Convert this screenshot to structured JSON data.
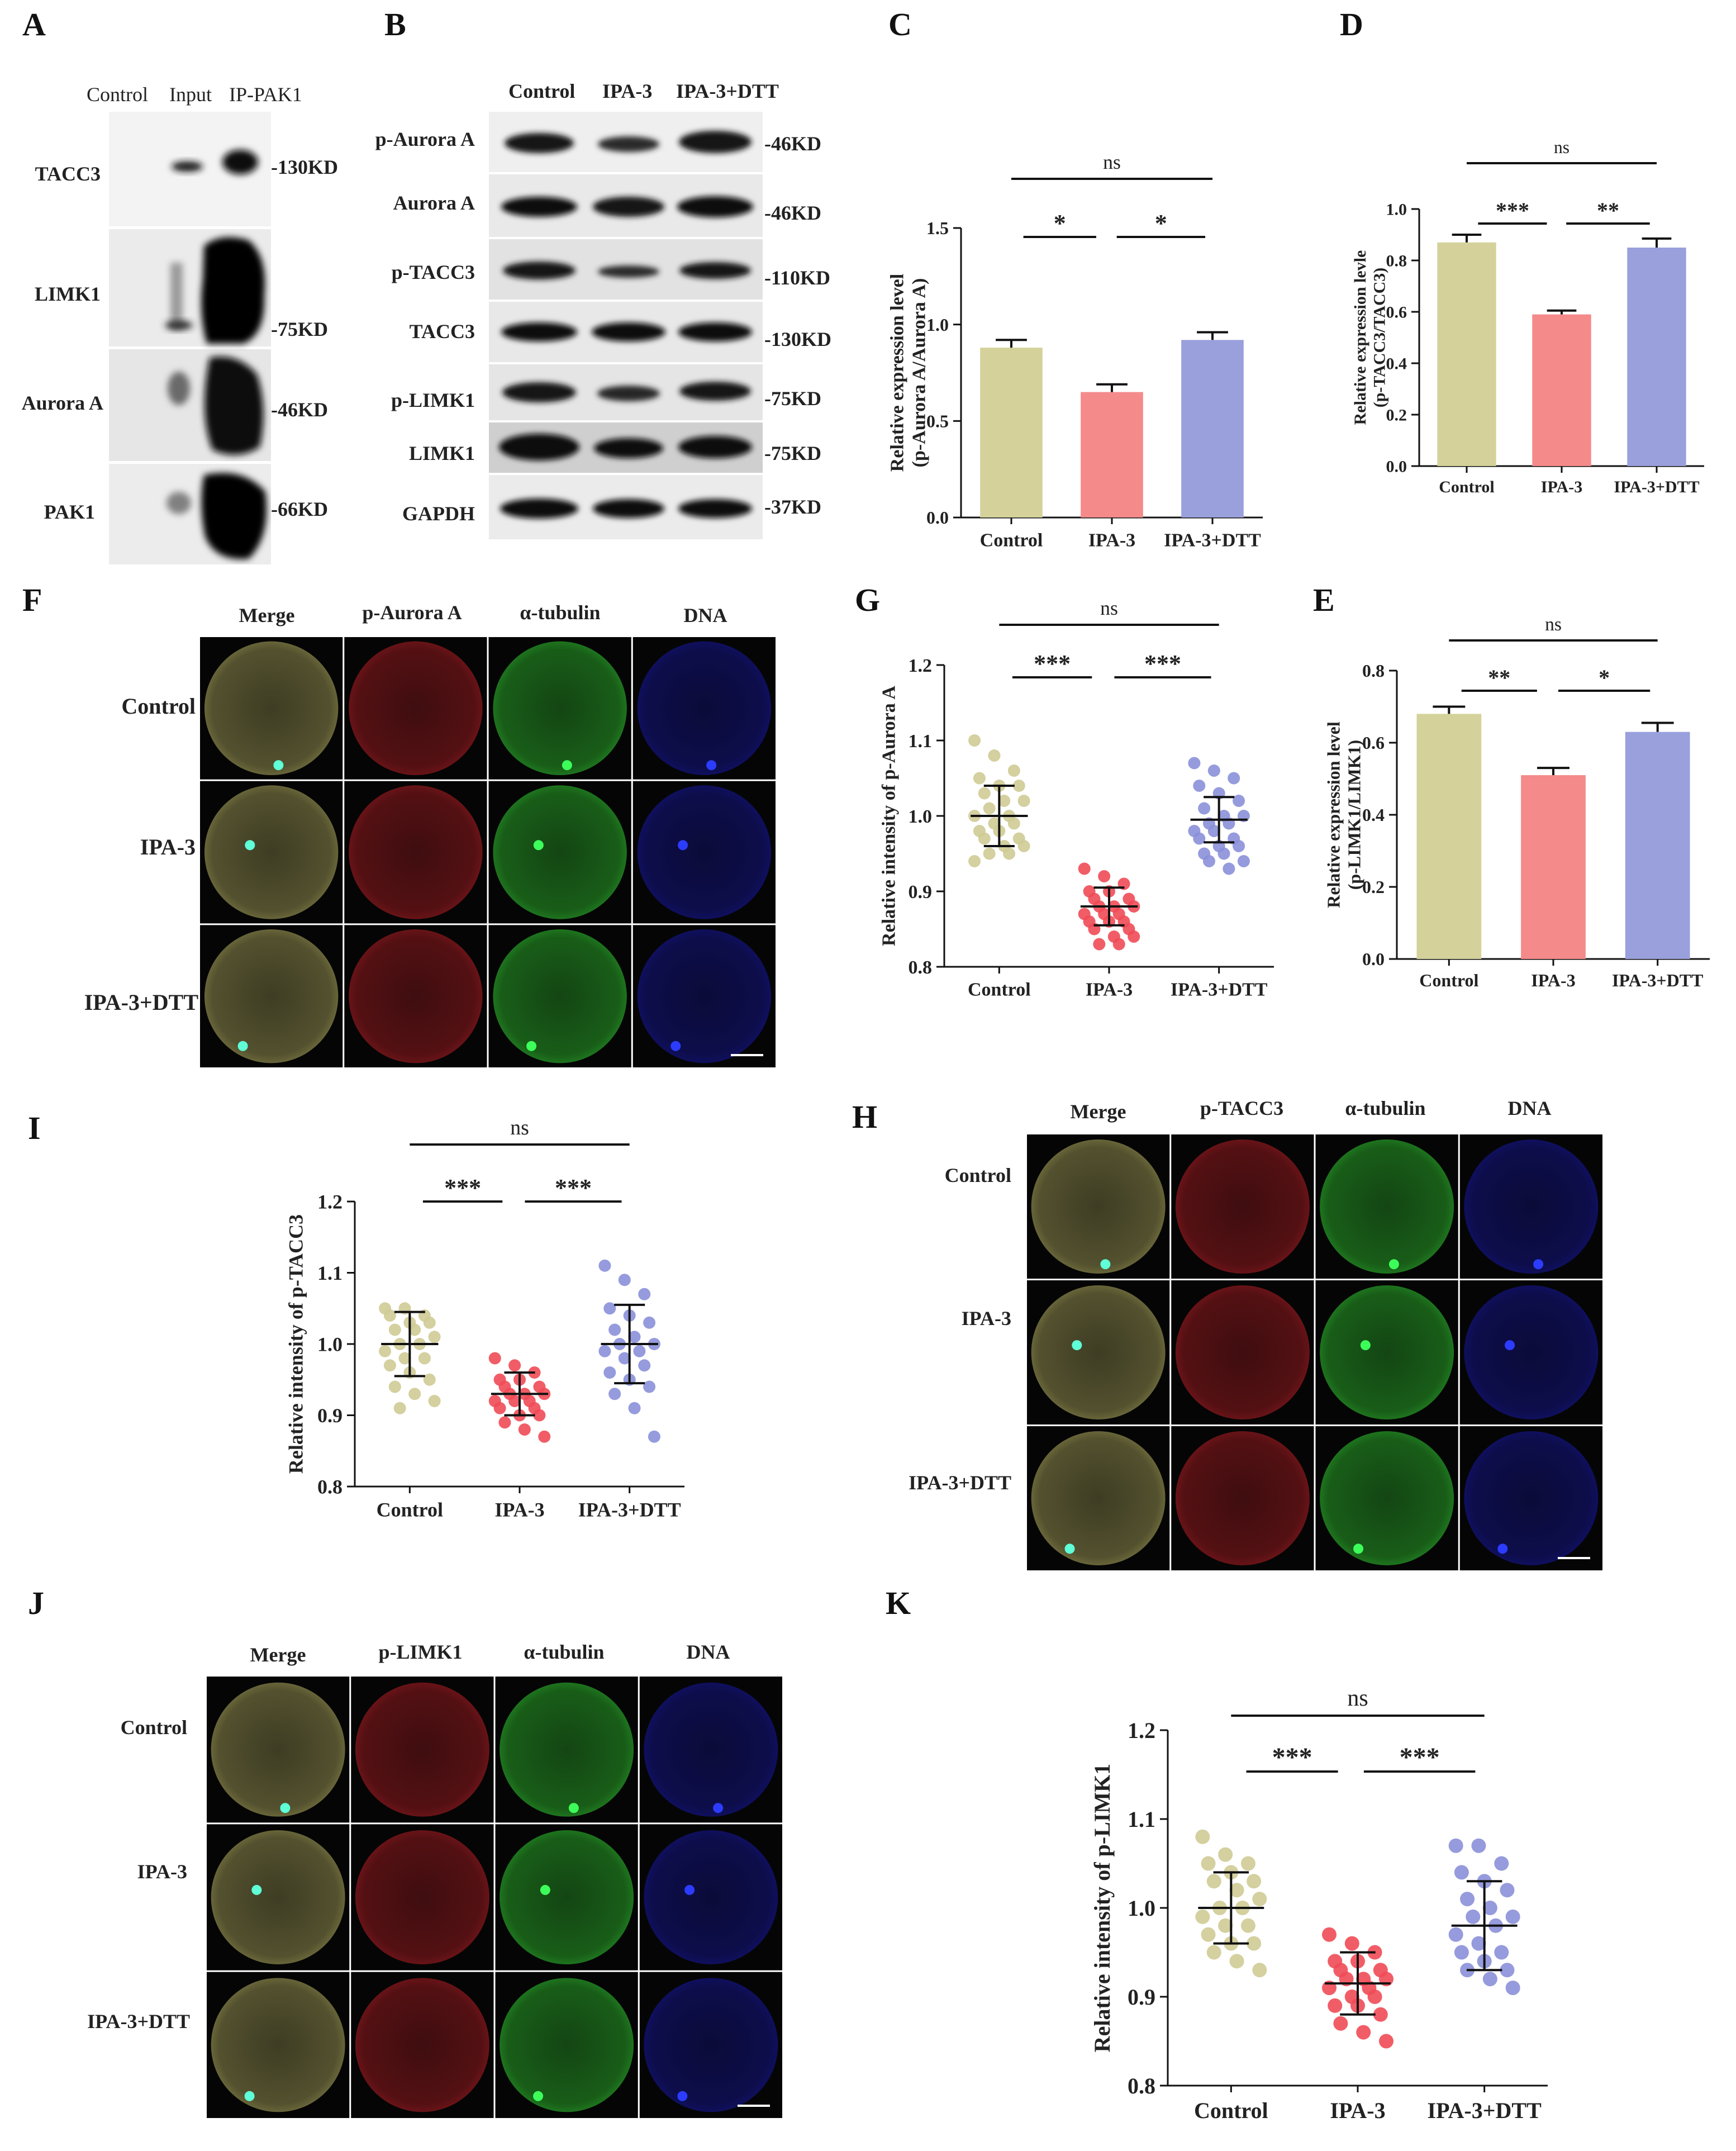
{
  "panels": {
    "A": {
      "letter": "A",
      "columns": [
        "Control",
        "Input",
        "IP-PAK1"
      ],
      "rows": [
        {
          "label": "TACC3",
          "kd": "-130KD"
        },
        {
          "label": "LIMK1",
          "kd": "-75KD"
        },
        {
          "label": "Aurora A",
          "kd": "-46KD"
        },
        {
          "label": "PAK1",
          "kd": "-66KD"
        }
      ]
    },
    "B": {
      "letter": "B",
      "columns": [
        "Control",
        "IPA-3",
        "IPA-3+DTT"
      ],
      "rows": [
        {
          "label": "p-Aurora A",
          "kd": "-46KD"
        },
        {
          "label": "Aurora A",
          "kd": "-46KD"
        },
        {
          "label": "p-TACC3",
          "kd": "-110KD"
        },
        {
          "label": "TACC3",
          "kd": "-130KD"
        },
        {
          "label": "p-LIMK1",
          "kd": "-75KD"
        },
        {
          "label": "LIMK1",
          "kd": "-75KD"
        },
        {
          "label": "GAPDH",
          "kd": "-37KD"
        }
      ]
    },
    "F": {
      "letter": "F",
      "columns": [
        "Merge",
        "p-Aurora A",
        "α-tubulin",
        "DNA"
      ],
      "rows": [
        "Control",
        "IPA-3",
        "IPA-3+DTT"
      ]
    },
    "H": {
      "letter": "H",
      "columns": [
        "Merge",
        "p-TACC3",
        "α-tubulin",
        "DNA"
      ],
      "rows": [
        "Control",
        "IPA-3",
        "IPA-3+DTT"
      ]
    },
    "J": {
      "letter": "J",
      "columns": [
        "Merge",
        "p-LIMK1",
        "α-tubulin",
        "DNA"
      ],
      "rows": [
        "Control",
        "IPA-3",
        "IPA-3+DTT"
      ]
    }
  },
  "colors": {
    "control": "#d4d29a",
    "ipa3": "#f58a8a",
    "ipa3dtt": "#9aa0dc",
    "control_dot": "#cfcb95",
    "ipa3_dot": "#ef4b57",
    "ipa3dtt_dot": "#8a90d8"
  },
  "chart_data": [
    {
      "id": "C",
      "letter": "C",
      "type": "bar",
      "categories": [
        "Control",
        "IPA-3",
        "IPA-3+DTT"
      ],
      "values": [
        0.88,
        0.65,
        0.92
      ],
      "errors": [
        0.04,
        0.04,
        0.04
      ],
      "ylabel": "Relative expression level\n(p-Aurora A/Aurora A)",
      "ylim": [
        0.0,
        1.5
      ],
      "yticks": [
        "0.0",
        "0.5",
        "1.0",
        "1.5"
      ],
      "significance": [
        {
          "from": 0,
          "to": 2,
          "label": "ns"
        },
        {
          "from": 0,
          "to": 1,
          "label": "*"
        },
        {
          "from": 1,
          "to": 2,
          "label": "*"
        }
      ]
    },
    {
      "id": "D",
      "letter": "D",
      "type": "bar",
      "categories": [
        "Control",
        "IPA-3",
        "IPA-3+DTT"
      ],
      "values": [
        0.87,
        0.59,
        0.85
      ],
      "errors": [
        0.03,
        0.015,
        0.035
      ],
      "ylabel": "Relative expression levle\n(p-TACC3/TACC3)",
      "ylim": [
        0.0,
        1.0
      ],
      "yticks": [
        "0.0",
        "0.2",
        "0.4",
        "0.6",
        "0.8",
        "1.0"
      ],
      "significance": [
        {
          "from": 0,
          "to": 2,
          "label": "ns"
        },
        {
          "from": 0,
          "to": 1,
          "label": "***"
        },
        {
          "from": 1,
          "to": 2,
          "label": "**"
        }
      ]
    },
    {
      "id": "E",
      "letter": "E",
      "type": "bar",
      "categories": [
        "Control",
        "IPA-3",
        "IPA-3+DTT"
      ],
      "values": [
        0.68,
        0.51,
        0.63
      ],
      "errors": [
        0.02,
        0.02,
        0.025
      ],
      "ylabel": "Relative expression level\n(p-LIMK1/LIMK1)",
      "ylim": [
        0.0,
        0.8
      ],
      "yticks": [
        "0.0",
        "0.2",
        "0.4",
        "0.6",
        "0.8"
      ],
      "significance": [
        {
          "from": 0,
          "to": 2,
          "label": "ns"
        },
        {
          "from": 0,
          "to": 1,
          "label": "**"
        },
        {
          "from": 1,
          "to": 2,
          "label": "*"
        }
      ]
    },
    {
      "id": "G",
      "letter": "G",
      "type": "scatter",
      "categories": [
        "Control",
        "IPA-3",
        "IPA-3+DTT"
      ],
      "means": [
        1.0,
        0.88,
        0.995
      ],
      "sds": [
        0.04,
        0.025,
        0.03
      ],
      "points": [
        [
          1.1,
          1.08,
          1.06,
          1.05,
          1.04,
          1.04,
          1.03,
          1.02,
          1.02,
          1.01,
          1.0,
          1.0,
          0.99,
          0.99,
          0.98,
          0.98,
          0.97,
          0.97,
          0.96,
          0.96,
          0.95,
          0.95,
          0.94
        ],
        [
          0.93,
          0.92,
          0.91,
          0.9,
          0.9,
          0.89,
          0.89,
          0.88,
          0.88,
          0.88,
          0.87,
          0.87,
          0.87,
          0.86,
          0.86,
          0.86,
          0.85,
          0.85,
          0.84,
          0.84,
          0.83,
          0.83
        ],
        [
          1.07,
          1.06,
          1.05,
          1.04,
          1.03,
          1.02,
          1.01,
          1.0,
          1.0,
          0.99,
          0.99,
          0.98,
          0.98,
          0.97,
          0.97,
          0.96,
          0.96,
          0.95,
          0.95,
          0.94,
          0.94,
          0.93
        ]
      ],
      "ylabel": "Relative  intensity of p-Aurora A",
      "ylim": [
        0.8,
        1.2
      ],
      "yticks": [
        "0.8",
        "0.9",
        "1.0",
        "1.1",
        "1.2"
      ],
      "significance": [
        {
          "from": 0,
          "to": 2,
          "label": "ns"
        },
        {
          "from": 0,
          "to": 1,
          "label": "***"
        },
        {
          "from": 1,
          "to": 2,
          "label": "***"
        }
      ]
    },
    {
      "id": "I",
      "letter": "I",
      "type": "scatter",
      "categories": [
        "Control",
        "IPA-3",
        "IPA-3+DTT"
      ],
      "means": [
        1.0,
        0.93,
        1.0
      ],
      "sds": [
        0.045,
        0.03,
        0.055
      ],
      "points": [
        [
          1.05,
          1.05,
          1.04,
          1.04,
          1.03,
          1.03,
          1.02,
          1.02,
          1.01,
          1.0,
          1.0,
          0.99,
          0.98,
          0.98,
          0.97,
          0.96,
          0.95,
          0.94,
          0.93,
          0.92,
          0.91
        ],
        [
          0.98,
          0.97,
          0.96,
          0.95,
          0.95,
          0.94,
          0.94,
          0.93,
          0.93,
          0.93,
          0.92,
          0.92,
          0.92,
          0.91,
          0.91,
          0.9,
          0.9,
          0.89,
          0.88,
          0.87
        ],
        [
          1.11,
          1.09,
          1.07,
          1.05,
          1.04,
          1.03,
          1.02,
          1.01,
          1.0,
          1.0,
          0.99,
          0.99,
          0.98,
          0.97,
          0.96,
          0.95,
          0.94,
          0.93,
          0.91,
          0.87
        ]
      ],
      "ylabel": "Relative  intensity of p-TACC3",
      "ylim": [
        0.8,
        1.2
      ],
      "yticks": [
        "0.8",
        "0.9",
        "1.0",
        "1.1",
        "1.2"
      ],
      "significance": [
        {
          "from": 0,
          "to": 2,
          "label": "ns"
        },
        {
          "from": 0,
          "to": 1,
          "label": "***"
        },
        {
          "from": 1,
          "to": 2,
          "label": "***"
        }
      ]
    },
    {
      "id": "K",
      "letter": "K",
      "type": "scatter",
      "categories": [
        "Control",
        "IPA-3",
        "IPA-3+DTT"
      ],
      "means": [
        1.0,
        0.915,
        0.98
      ],
      "sds": [
        0.04,
        0.035,
        0.05
      ],
      "points": [
        [
          1.08,
          1.06,
          1.05,
          1.05,
          1.04,
          1.03,
          1.03,
          1.02,
          1.01,
          1.0,
          1.0,
          0.99,
          0.98,
          0.98,
          0.97,
          0.96,
          0.96,
          0.95,
          0.94,
          0.93
        ],
        [
          0.97,
          0.96,
          0.95,
          0.94,
          0.94,
          0.93,
          0.93,
          0.92,
          0.92,
          0.92,
          0.91,
          0.91,
          0.9,
          0.9,
          0.89,
          0.89,
          0.88,
          0.87,
          0.86,
          0.85
        ],
        [
          1.07,
          1.07,
          1.05,
          1.04,
          1.03,
          1.02,
          1.01,
          1.0,
          0.99,
          0.99,
          0.98,
          0.97,
          0.96,
          0.95,
          0.95,
          0.94,
          0.93,
          0.93,
          0.92,
          0.91
        ]
      ],
      "ylabel": "Relative  intensity of p-LIMK1",
      "ylim": [
        0.8,
        1.2
      ],
      "yticks": [
        "0.8",
        "0.9",
        "1.0",
        "1.1",
        "1.2"
      ],
      "significance": [
        {
          "from": 0,
          "to": 2,
          "label": "ns"
        },
        {
          "from": 0,
          "to": 1,
          "label": "***"
        },
        {
          "from": 1,
          "to": 2,
          "label": "***"
        }
      ]
    }
  ]
}
